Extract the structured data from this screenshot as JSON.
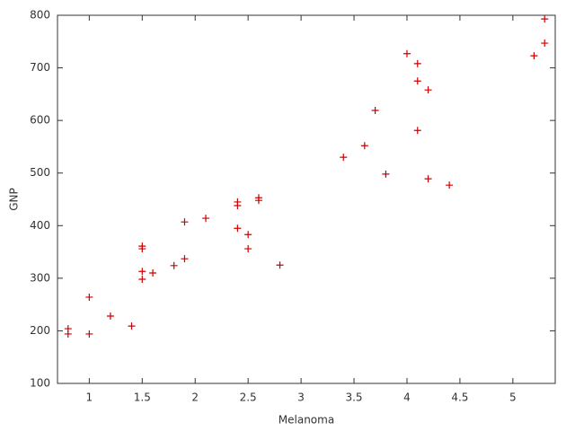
{
  "chart_data": {
    "type": "scatter",
    "x_label": "Melanoma",
    "y_label": "GNP",
    "series": [
      {
        "color": "#cc0000",
        "x": [
          0.8,
          0.8,
          1.0,
          1.0,
          1.2,
          1.4,
          1.5,
          1.5,
          1.5,
          1.5,
          1.6,
          1.8,
          1.9,
          1.9,
          2.1,
          2.4,
          2.4,
          2.4,
          2.5,
          2.5,
          2.6,
          2.6,
          2.8,
          3.4,
          3.6,
          3.7,
          3.8,
          4.0,
          4.1,
          4.1,
          4.1,
          4.2,
          4.2,
          4.4,
          5.2,
          5.3,
          5.3
        ],
        "values": [
          204,
          194,
          264,
          194,
          228,
          209,
          361,
          356,
          313,
          298,
          310,
          324,
          407,
          337,
          414,
          445,
          438,
          395,
          383,
          356,
          453,
          448,
          325,
          530,
          552,
          619,
          498,
          727,
          708,
          675,
          581,
          658,
          489,
          477,
          723,
          793,
          747
        ]
      }
    ],
    "xlim": [
      0.7,
      5.4
    ],
    "xticks": [
      1,
      1.5,
      2,
      2.5,
      3,
      3.5,
      4,
      4.5,
      5
    ],
    "ylim": [
      100,
      800
    ],
    "yticks": [
      100,
      200,
      300,
      400,
      500,
      600,
      700,
      800
    ]
  }
}
